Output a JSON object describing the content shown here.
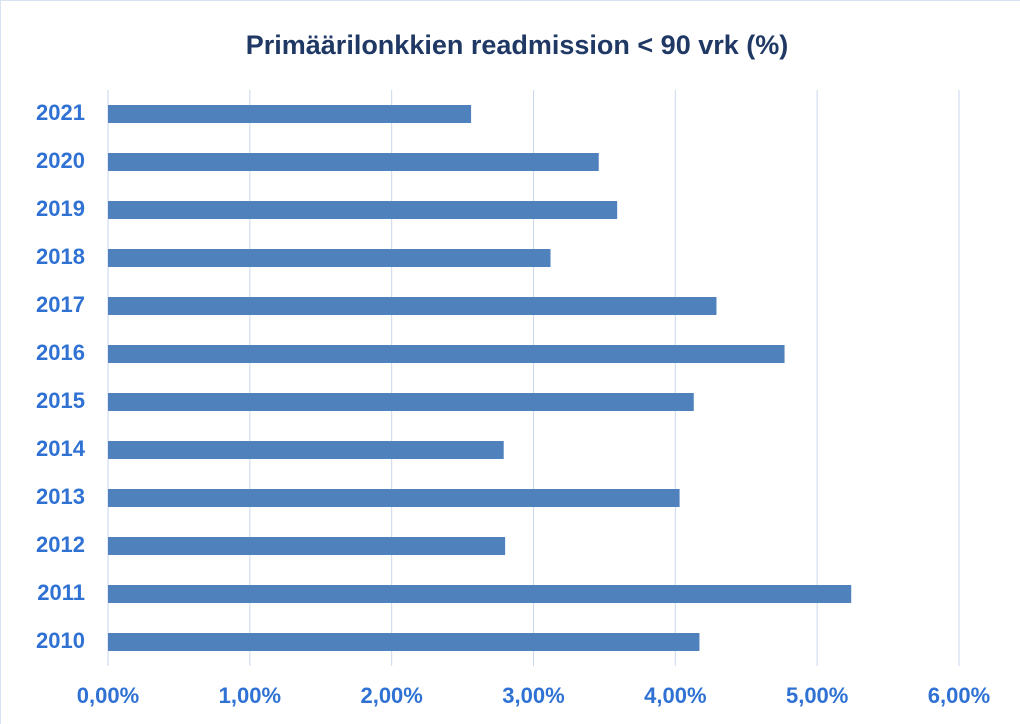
{
  "chart_data": {
    "type": "barh",
    "title": "Primäärilonkkien readmission < 90 vrk (%)",
    "categories": [
      "2021",
      "2020",
      "2019",
      "2018",
      "2017",
      "2016",
      "2015",
      "2014",
      "2013",
      "2012",
      "2011",
      "2010"
    ],
    "values": [
      2.56,
      3.46,
      3.59,
      3.12,
      4.29,
      4.77,
      4.13,
      2.79,
      4.03,
      2.8,
      5.24,
      4.17
    ],
    "color": "#4f81bd",
    "xlim": [
      0,
      6
    ],
    "xticks": [
      {
        "value": 0,
        "label": "0,00%"
      },
      {
        "value": 1,
        "label": "1,00%"
      },
      {
        "value": 2,
        "label": "2,00%"
      },
      {
        "value": 3,
        "label": "3,00%"
      },
      {
        "value": 4,
        "label": "4,00%"
      },
      {
        "value": 5,
        "label": "5,00%"
      },
      {
        "value": 6,
        "label": "6,00%"
      }
    ],
    "grid": true
  }
}
